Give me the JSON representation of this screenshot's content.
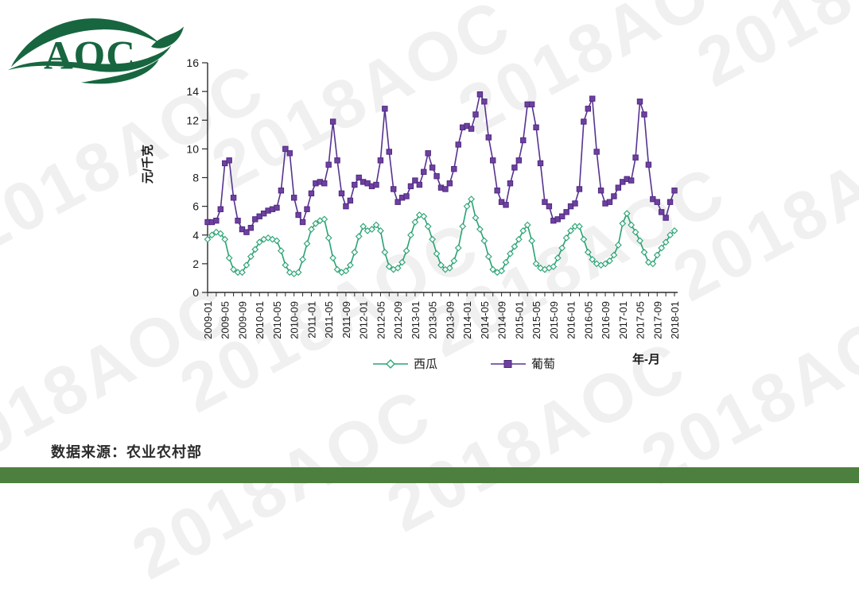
{
  "logo": {
    "text": "AOC",
    "color": "#176640"
  },
  "watermark": {
    "text": "2018AOC"
  },
  "y_axis": {
    "title": "元/千克"
  },
  "x_axis": {
    "title": "年-月"
  },
  "footer": {
    "source_label": "数据来源：农业农村部",
    "bar_color": "#4d7f3e"
  },
  "chart_data": {
    "type": "line",
    "title": "",
    "xlabel": "年-月",
    "ylabel": "元/千克",
    "ylim": [
      0,
      16
    ],
    "y_ticks": [
      0,
      2,
      4,
      6,
      8,
      10,
      12,
      14,
      16
    ],
    "grid": false,
    "legend_position": "bottom",
    "x_monthly_range": {
      "start": "2009-01",
      "end": "2018-01",
      "points": 109
    },
    "x_tick_labels": [
      "2009-01",
      "2009-05",
      "2009-09",
      "2010-01",
      "2010-05",
      "2010-09",
      "2011-01",
      "2011-05",
      "2011-09",
      "2012-01",
      "2012-05",
      "2012-09",
      "2013-01",
      "2013-05",
      "2013-09",
      "2014-01",
      "2014-05",
      "2014-09",
      "2015-01",
      "2015-05",
      "2015-09",
      "2016-01",
      "2016-05",
      "2016-09",
      "2017-01",
      "2017-05",
      "2017-09",
      "2018-01"
    ],
    "series": [
      {
        "name": "西瓜",
        "marker": "diamond",
        "line_color": "#2aa273",
        "marker_fill": "#f6fcf9",
        "marker_stroke": "#2aa273",
        "values": [
          3.7,
          4.0,
          4.2,
          4.1,
          3.7,
          2.4,
          1.6,
          1.4,
          1.4,
          1.9,
          2.5,
          3.0,
          3.5,
          3.7,
          3.8,
          3.7,
          3.6,
          2.9,
          1.9,
          1.4,
          1.3,
          1.4,
          2.3,
          3.4,
          4.4,
          4.8,
          5.0,
          5.1,
          3.8,
          2.4,
          1.6,
          1.4,
          1.5,
          1.9,
          2.8,
          3.9,
          4.6,
          4.3,
          4.4,
          4.7,
          4.3,
          2.8,
          1.8,
          1.6,
          1.7,
          2.1,
          2.9,
          4.0,
          4.9,
          5.4,
          5.3,
          4.6,
          3.7,
          2.7,
          1.9,
          1.6,
          1.7,
          2.2,
          3.1,
          4.6,
          6.0,
          6.5,
          5.2,
          4.4,
          3.6,
          2.5,
          1.6,
          1.4,
          1.5,
          2.1,
          2.7,
          3.2,
          3.7,
          4.3,
          4.7,
          3.6,
          2.0,
          1.7,
          1.6,
          1.7,
          1.8,
          2.4,
          3.1,
          3.8,
          4.3,
          4.6,
          4.6,
          3.7,
          2.8,
          2.3,
          2.0,
          1.9,
          2.0,
          2.2,
          2.6,
          3.3,
          4.8,
          5.5,
          4.7,
          4.2,
          3.6,
          2.8,
          2.1,
          2.0,
          2.6,
          3.1,
          3.5,
          4.0,
          4.3
        ]
      },
      {
        "name": "葡萄",
        "marker": "square",
        "line_color": "#563390",
        "marker_fill": "#7040a0",
        "marker_stroke": "#4c2a80",
        "values": [
          4.9,
          4.9,
          5.0,
          5.8,
          9.0,
          9.2,
          6.6,
          5.0,
          4.4,
          4.2,
          4.5,
          5.1,
          5.3,
          5.5,
          5.7,
          5.8,
          5.9,
          7.1,
          10.0,
          9.7,
          6.6,
          5.4,
          4.9,
          5.8,
          6.9,
          7.6,
          7.7,
          7.6,
          8.9,
          11.9,
          9.2,
          6.9,
          6.0,
          6.4,
          7.5,
          8.0,
          7.7,
          7.6,
          7.4,
          7.5,
          9.2,
          12.8,
          9.8,
          7.2,
          6.3,
          6.6,
          6.7,
          7.4,
          7.8,
          7.5,
          8.4,
          9.7,
          8.7,
          8.1,
          7.3,
          7.2,
          7.6,
          8.6,
          10.3,
          11.5,
          11.6,
          11.4,
          12.4,
          13.8,
          13.3,
          10.8,
          9.2,
          7.1,
          6.3,
          6.1,
          7.6,
          8.7,
          9.2,
          10.6,
          13.1,
          13.1,
          11.5,
          9.0,
          6.3,
          6.0,
          5.0,
          5.1,
          5.3,
          5.6,
          6.0,
          6.2,
          7.2,
          11.9,
          12.8,
          13.5,
          9.8,
          7.1,
          6.2,
          6.3,
          6.7,
          7.3,
          7.7,
          7.9,
          7.8,
          9.4,
          13.3,
          12.4,
          8.9,
          6.5,
          6.3,
          5.6,
          5.2,
          6.3,
          7.1
        ]
      }
    ]
  }
}
